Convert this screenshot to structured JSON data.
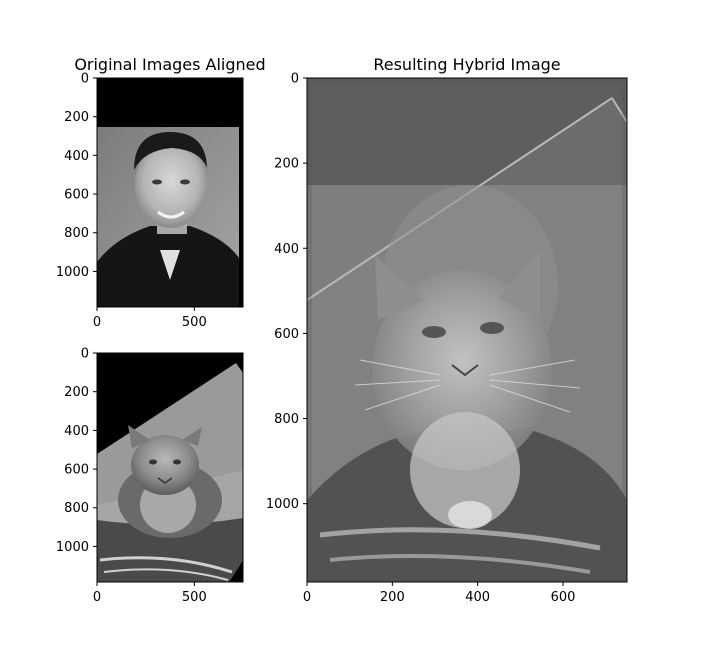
{
  "chart_data": [
    {
      "type": "image",
      "title": "Original Images Aligned",
      "content": "man-portrait-grayscale",
      "xlim": [
        0,
        750
      ],
      "ylim": [
        1184,
        0
      ],
      "xticks": [
        0,
        500
      ],
      "yticks": [
        0,
        200,
        400,
        600,
        800,
        1000
      ],
      "colors": {
        "background": "#000000"
      }
    },
    {
      "type": "image",
      "content": "cat-photo-rotated-grayscale",
      "xlim": [
        0,
        750
      ],
      "ylim": [
        1184,
        0
      ],
      "xticks": [
        0,
        500
      ],
      "yticks": [
        0,
        200,
        400,
        600,
        800,
        1000
      ]
    },
    {
      "type": "image",
      "title": "Resulting Hybrid Image",
      "content": "hybrid-man-cat-grayscale",
      "xlim": [
        0,
        750
      ],
      "ylim": [
        1184,
        0
      ],
      "xticks": [
        0,
        200,
        400,
        600
      ],
      "yticks": [
        0,
        200,
        400,
        600,
        800,
        1000
      ]
    }
  ]
}
